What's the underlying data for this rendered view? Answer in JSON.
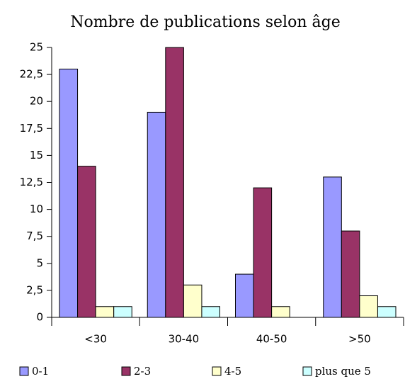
{
  "chart_data": {
    "type": "bar",
    "title": "Nombre de publications selon âge",
    "categories": [
      "<30",
      "30-40",
      "40-50",
      ">50"
    ],
    "series": [
      {
        "name": "0-1",
        "color": "#9999ff",
        "values": [
          23,
          19,
          4,
          13
        ]
      },
      {
        "name": "2-3",
        "color": "#993366",
        "values": [
          14,
          25,
          12,
          8
        ]
      },
      {
        "name": "4-5",
        "color": "#ffffcc",
        "values": [
          1,
          3,
          1,
          2
        ]
      },
      {
        "name": "plus que 5",
        "color": "#ccffff",
        "values": [
          1,
          1,
          0,
          1
        ]
      }
    ],
    "ylim": [
      0,
      25
    ],
    "yticks": [
      0,
      {
        "value": 2.5,
        "label": "2,5"
      },
      5,
      {
        "value": 7.5,
        "label": "7,5"
      },
      10,
      {
        "value": 12.5,
        "label": "12,5"
      },
      15,
      {
        "value": 17.5,
        "label": "17,5"
      },
      20,
      {
        "value": 22.5,
        "label": "22,5"
      },
      25
    ],
    "grid": false,
    "legend": "bottom"
  }
}
